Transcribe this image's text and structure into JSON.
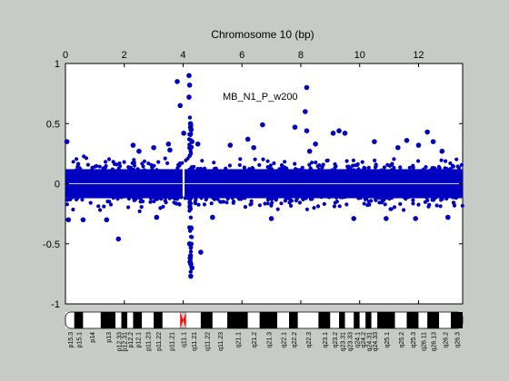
{
  "chart_data": {
    "type": "scatter",
    "title": "Chromosome 10 (bp)",
    "annotation": "MB_N1_P_w200",
    "x_tick_scale_note": "",
    "xlim": [
      0,
      13.5
    ],
    "ylim": [
      -1,
      1
    ],
    "x_ticks": [
      "0",
      "2",
      "4",
      "6",
      "8",
      "10",
      "12"
    ],
    "x_tick_values": [
      0,
      2,
      4,
      6,
      8,
      10,
      12
    ],
    "y_ticks": [
      "1",
      "0.5",
      "0",
      "-0.5",
      "-1"
    ],
    "y_tick_values": [
      1,
      0.5,
      0,
      -0.5,
      -1
    ],
    "point_color": "#0000c0",
    "zero_line_color": "#c8c8ff",
    "bulk_band": {
      "x_range": [
        0,
        13.5
      ],
      "y_range": [
        -0.22,
        0.22
      ],
      "excluded_gap": [
        3.98,
        4.05
      ]
    },
    "outliers": {
      "x": [
        0.05,
        0.1,
        1.8,
        2.3,
        2.5,
        3.0,
        3.5,
        3.55,
        3.8,
        3.9,
        4.02,
        4.2,
        4.22,
        4.25,
        4.25,
        4.27,
        4.2,
        4.23,
        4.3,
        4.5,
        4.22,
        4.25,
        4.24,
        4.26,
        4.3,
        4.6,
        5.6,
        6.2,
        6.4,
        6.7,
        7.8,
        8.15,
        8.2,
        8.2,
        8.3,
        8.5,
        9.1,
        9.3,
        9.5,
        10.5,
        11.3,
        11.6,
        12.0,
        12.3,
        12.5,
        12.8,
        1.4,
        0.6,
        3.1,
        5.0,
        7.0,
        9.8,
        10.9,
        11.9,
        13.0
      ],
      "y": [
        0.35,
        -0.3,
        -0.46,
        0.32,
        0.27,
        0.3,
        0.33,
        0.28,
        0.85,
        0.65,
        0.42,
        0.9,
        0.82,
        0.5,
        0.47,
        0.45,
        0.72,
        0.3,
        0.35,
        0.33,
        -0.5,
        -0.6,
        -0.62,
        -0.77,
        -0.7,
        -0.57,
        0.32,
        0.37,
        0.3,
        0.49,
        0.47,
        0.6,
        0.8,
        0.44,
        0.27,
        0.33,
        0.42,
        0.44,
        0.42,
        0.35,
        0.3,
        0.36,
        0.32,
        0.43,
        0.35,
        0.27,
        -0.3,
        -0.3,
        -0.28,
        -0.28,
        -0.29,
        -0.29,
        -0.29,
        -0.29,
        -0.28
      ]
    },
    "ideogram": {
      "bands": [
        {
          "label": "p15.3",
          "start": 0.0,
          "end": 0.3,
          "stain": "gneg"
        },
        {
          "label": "p15.1",
          "start": 0.3,
          "end": 0.6,
          "stain": "gpos"
        },
        {
          "label": "p14",
          "start": 0.6,
          "end": 1.2,
          "stain": "gneg"
        },
        {
          "label": "p13",
          "start": 1.2,
          "end": 1.7,
          "stain": "gpos"
        },
        {
          "label": "p12.33",
          "start": 1.7,
          "end": 1.9,
          "stain": "gneg"
        },
        {
          "label": "p12.31",
          "start": 1.9,
          "end": 2.1,
          "stain": "gpos"
        },
        {
          "label": "p12.2",
          "start": 2.1,
          "end": 2.3,
          "stain": "gneg"
        },
        {
          "label": "p12.1",
          "start": 2.3,
          "end": 2.6,
          "stain": "gpos"
        },
        {
          "label": "p11.23",
          "start": 2.6,
          "end": 3.0,
          "stain": "gneg"
        },
        {
          "label": "p11.22",
          "start": 3.0,
          "end": 3.3,
          "stain": "gpos"
        },
        {
          "label": "p11.21",
          "start": 3.3,
          "end": 3.9,
          "stain": "gneg"
        },
        {
          "label": "q11.1",
          "start": 3.9,
          "end": 4.1,
          "stain": "acen"
        },
        {
          "label": "q11.21",
          "start": 4.1,
          "end": 4.6,
          "stain": "gneg"
        },
        {
          "label": "q11.22",
          "start": 4.6,
          "end": 5.0,
          "stain": "gpos"
        },
        {
          "label": "q11.23",
          "start": 5.0,
          "end": 5.5,
          "stain": "gneg"
        },
        {
          "label": "q21.1",
          "start": 5.5,
          "end": 6.2,
          "stain": "gpos"
        },
        {
          "label": "q21.2",
          "start": 6.2,
          "end": 6.6,
          "stain": "gneg"
        },
        {
          "label": "q21.3",
          "start": 6.6,
          "end": 7.2,
          "stain": "gpos"
        },
        {
          "label": "q22.1",
          "start": 7.2,
          "end": 7.6,
          "stain": "gneg"
        },
        {
          "label": "q22.2",
          "start": 7.6,
          "end": 7.9,
          "stain": "gpos"
        },
        {
          "label": "q22.3",
          "start": 7.9,
          "end": 8.6,
          "stain": "gneg"
        },
        {
          "label": "q23.1",
          "start": 8.6,
          "end": 9.0,
          "stain": "gpos"
        },
        {
          "label": "q23.2",
          "start": 9.0,
          "end": 9.3,
          "stain": "gneg"
        },
        {
          "label": "q23.31",
          "start": 9.3,
          "end": 9.5,
          "stain": "gpos"
        },
        {
          "label": "q23.33",
          "start": 9.5,
          "end": 9.8,
          "stain": "gneg"
        },
        {
          "label": "q24.1",
          "start": 9.8,
          "end": 10.0,
          "stain": "gpos"
        },
        {
          "label": "q24.2",
          "start": 10.0,
          "end": 10.2,
          "stain": "gneg"
        },
        {
          "label": "q24.31",
          "start": 10.2,
          "end": 10.4,
          "stain": "gpos"
        },
        {
          "label": "q24.33",
          "start": 10.4,
          "end": 10.6,
          "stain": "gneg"
        },
        {
          "label": "q25.1",
          "start": 10.6,
          "end": 11.2,
          "stain": "gpos"
        },
        {
          "label": "q25.2",
          "start": 11.2,
          "end": 11.6,
          "stain": "gneg"
        },
        {
          "label": "q25.3",
          "start": 11.6,
          "end": 12.0,
          "stain": "gpos"
        },
        {
          "label": "q26.11",
          "start": 12.0,
          "end": 12.3,
          "stain": "gneg"
        },
        {
          "label": "q26.13",
          "start": 12.3,
          "end": 12.7,
          "stain": "gpos"
        },
        {
          "label": "q26.2",
          "start": 12.7,
          "end": 13.1,
          "stain": "gneg"
        },
        {
          "label": "q26.3",
          "start": 13.1,
          "end": 13.5,
          "stain": "gpos"
        }
      ],
      "stain_colors": {
        "gneg": "#ffffff",
        "gpos": "#000000",
        "acen": "#ff0000"
      }
    }
  }
}
